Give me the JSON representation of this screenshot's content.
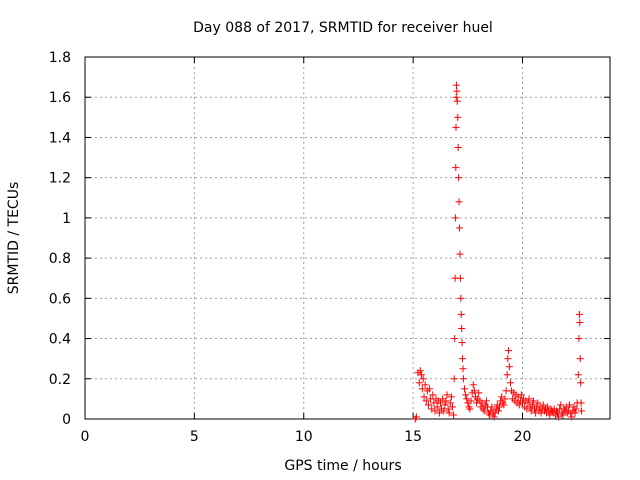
{
  "chart_data": {
    "type": "scatter",
    "title": "Day 088 of 2017, SRMTID for receiver huel",
    "xlabel": "GPS time / hours",
    "ylabel": "SRMTID / TECUs",
    "xlim": [
      0,
      24
    ],
    "ylim": [
      0,
      1.8
    ],
    "xticks": [
      {
        "value": 0,
        "label": "0"
      },
      {
        "value": 5,
        "label": "5"
      },
      {
        "value": 10,
        "label": "10"
      },
      {
        "value": 15,
        "label": "15"
      },
      {
        "value": 20,
        "label": "20"
      }
    ],
    "yticks": [
      {
        "value": 0,
        "label": "0"
      },
      {
        "value": 0.2,
        "label": "0.2"
      },
      {
        "value": 0.4,
        "label": "0.4"
      },
      {
        "value": 0.6,
        "label": "0.6"
      },
      {
        "value": 0.8,
        "label": "0.8"
      },
      {
        "value": 1.0,
        "label": "1"
      },
      {
        "value": 1.2,
        "label": "1.2"
      },
      {
        "value": 1.4,
        "label": "1.4"
      },
      {
        "value": 1.6,
        "label": "1.6"
      },
      {
        "value": 1.8,
        "label": "1.8"
      }
    ],
    "grid": true,
    "marker": "+",
    "series": [
      {
        "name": "SRMTID",
        "color": "#ff0000",
        "points": [
          [
            15.1,
            0.0
          ],
          [
            15.15,
            0.01
          ],
          [
            15.22,
            0.23
          ],
          [
            15.28,
            0.18
          ],
          [
            15.33,
            0.24
          ],
          [
            15.38,
            0.22
          ],
          [
            15.42,
            0.15
          ],
          [
            15.46,
            0.2
          ],
          [
            15.5,
            0.11
          ],
          [
            15.55,
            0.17
          ],
          [
            15.6,
            0.09
          ],
          [
            15.65,
            0.14
          ],
          [
            15.7,
            0.07
          ],
          [
            15.75,
            0.15
          ],
          [
            15.8,
            0.1
          ],
          [
            15.85,
            0.05
          ],
          [
            15.9,
            0.12
          ],
          [
            15.95,
            0.08
          ],
          [
            16.0,
            0.04
          ],
          [
            16.05,
            0.1
          ],
          [
            16.1,
            0.06
          ],
          [
            16.15,
            0.09
          ],
          [
            16.2,
            0.03
          ],
          [
            16.25,
            0.08
          ],
          [
            16.3,
            0.05
          ],
          [
            16.35,
            0.1
          ],
          [
            16.4,
            0.04
          ],
          [
            16.45,
            0.07
          ],
          [
            16.5,
            0.09
          ],
          [
            16.55,
            0.12
          ],
          [
            16.6,
            0.05
          ],
          [
            16.65,
            0.03
          ],
          [
            16.7,
            0.08
          ],
          [
            16.75,
            0.11
          ],
          [
            16.8,
            0.06
          ],
          [
            16.85,
            0.02
          ],
          [
            16.88,
            0.2
          ],
          [
            16.9,
            0.4
          ],
          [
            16.92,
            0.7
          ],
          [
            16.94,
            1.0
          ],
          [
            16.95,
            1.25
          ],
          [
            16.96,
            1.45
          ],
          [
            16.97,
            1.6
          ],
          [
            16.98,
            1.66
          ],
          [
            17.0,
            1.63
          ],
          [
            17.02,
            1.58
          ],
          [
            17.04,
            1.5
          ],
          [
            17.06,
            1.35
          ],
          [
            17.08,
            1.2
          ],
          [
            17.1,
            1.08
          ],
          [
            17.12,
            0.95
          ],
          [
            17.14,
            0.82
          ],
          [
            17.16,
            0.7
          ],
          [
            17.18,
            0.6
          ],
          [
            17.2,
            0.52
          ],
          [
            17.22,
            0.45
          ],
          [
            17.24,
            0.38
          ],
          [
            17.26,
            0.3
          ],
          [
            17.28,
            0.25
          ],
          [
            17.3,
            0.2
          ],
          [
            17.35,
            0.15
          ],
          [
            17.4,
            0.12
          ],
          [
            17.45,
            0.1
          ],
          [
            17.5,
            0.08
          ],
          [
            17.55,
            0.06
          ],
          [
            17.6,
            0.05
          ],
          [
            17.65,
            0.09
          ],
          [
            17.7,
            0.13
          ],
          [
            17.75,
            0.17
          ],
          [
            17.8,
            0.14
          ],
          [
            17.85,
            0.11
          ],
          [
            17.9,
            0.08
          ],
          [
            17.95,
            0.1
          ],
          [
            18.0,
            0.13
          ],
          [
            18.05,
            0.09
          ],
          [
            18.1,
            0.06
          ],
          [
            18.15,
            0.08
          ],
          [
            18.2,
            0.05
          ],
          [
            18.25,
            0.04
          ],
          [
            18.3,
            0.07
          ],
          [
            18.35,
            0.09
          ],
          [
            18.4,
            0.06
          ],
          [
            18.45,
            0.03
          ],
          [
            18.5,
            0.02
          ],
          [
            18.55,
            0.04
          ],
          [
            18.6,
            0.06
          ],
          [
            18.65,
            0.03
          ],
          [
            18.7,
            0.01
          ],
          [
            18.75,
            0.03
          ],
          [
            18.8,
            0.05
          ],
          [
            18.85,
            0.07
          ],
          [
            18.9,
            0.04
          ],
          [
            18.95,
            0.06
          ],
          [
            19.0,
            0.09
          ],
          [
            19.05,
            0.11
          ],
          [
            19.1,
            0.08
          ],
          [
            19.15,
            0.07
          ],
          [
            19.2,
            0.1
          ],
          [
            19.25,
            0.14
          ],
          [
            19.3,
            0.22
          ],
          [
            19.33,
            0.3
          ],
          [
            19.36,
            0.34
          ],
          [
            19.4,
            0.26
          ],
          [
            19.45,
            0.18
          ],
          [
            19.5,
            0.14
          ],
          [
            19.55,
            0.1
          ],
          [
            19.6,
            0.13
          ],
          [
            19.65,
            0.09
          ],
          [
            19.7,
            0.12
          ],
          [
            19.75,
            0.08
          ],
          [
            19.8,
            0.11
          ],
          [
            19.85,
            0.07
          ],
          [
            19.9,
            0.09
          ],
          [
            19.95,
            0.12
          ],
          [
            20.0,
            0.08
          ],
          [
            20.05,
            0.1
          ],
          [
            20.1,
            0.06
          ],
          [
            20.15,
            0.09
          ],
          [
            20.2,
            0.05
          ],
          [
            20.25,
            0.08
          ],
          [
            20.3,
            0.1
          ],
          [
            20.35,
            0.06
          ],
          [
            20.4,
            0.04
          ],
          [
            20.45,
            0.07
          ],
          [
            20.5,
            0.09
          ],
          [
            20.55,
            0.05
          ],
          [
            20.6,
            0.03
          ],
          [
            20.65,
            0.06
          ],
          [
            20.7,
            0.08
          ],
          [
            20.75,
            0.04
          ],
          [
            20.8,
            0.06
          ],
          [
            20.85,
            0.03
          ],
          [
            20.9,
            0.05
          ],
          [
            20.95,
            0.07
          ],
          [
            21.0,
            0.04
          ],
          [
            21.05,
            0.05
          ],
          [
            21.1,
            0.03
          ],
          [
            21.15,
            0.06
          ],
          [
            21.2,
            0.04
          ],
          [
            21.25,
            0.02
          ],
          [
            21.3,
            0.05
          ],
          [
            21.35,
            0.04
          ],
          [
            21.4,
            0.03
          ],
          [
            21.45,
            0.05
          ],
          [
            21.5,
            0.02
          ],
          [
            21.55,
            0.04
          ],
          [
            21.6,
            0.03
          ],
          [
            21.65,
            0.01
          ],
          [
            21.7,
            0.05
          ],
          [
            21.75,
            0.07
          ],
          [
            21.8,
            0.03
          ],
          [
            21.85,
            0.02
          ],
          [
            21.9,
            0.05
          ],
          [
            21.95,
            0.04
          ],
          [
            22.0,
            0.06
          ],
          [
            22.05,
            0.03
          ],
          [
            22.1,
            0.04
          ],
          [
            22.15,
            0.07
          ],
          [
            22.2,
            0.03
          ],
          [
            22.25,
            0.01
          ],
          [
            22.3,
            0.04
          ],
          [
            22.35,
            0.06
          ],
          [
            22.4,
            0.03
          ],
          [
            22.45,
            0.05
          ],
          [
            22.5,
            0.08
          ],
          [
            22.55,
            0.22
          ],
          [
            22.58,
            0.4
          ],
          [
            22.6,
            0.52
          ],
          [
            22.62,
            0.48
          ],
          [
            22.64,
            0.3
          ],
          [
            22.66,
            0.18
          ],
          [
            22.68,
            0.08
          ],
          [
            22.7,
            0.04
          ]
        ]
      }
    ]
  }
}
